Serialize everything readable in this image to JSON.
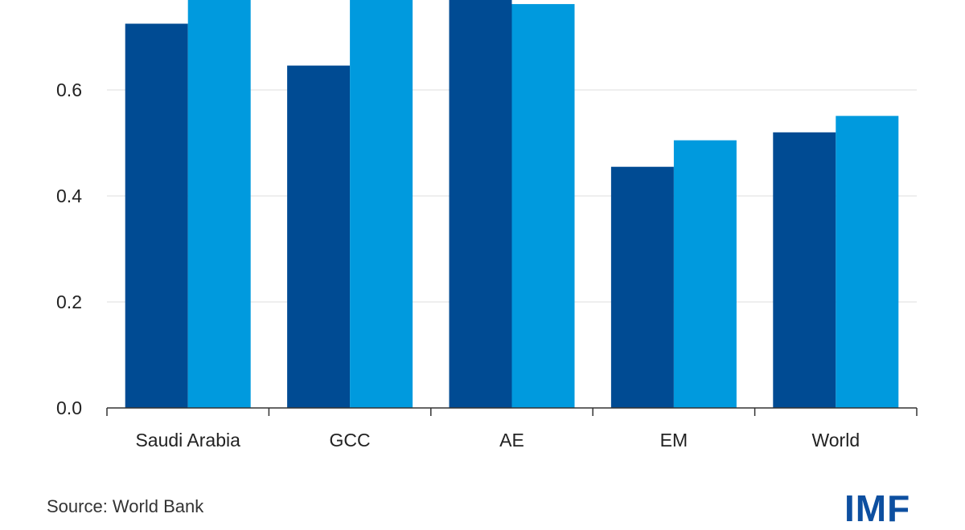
{
  "chart_data": {
    "type": "bar",
    "categories": [
      "Saudi Arabia",
      "GCC",
      "AE",
      "EM",
      "World"
    ],
    "series": [
      {
        "color": "#004b93",
        "values": [
          0.725,
          0.646,
          0.78,
          0.455,
          0.52
        ]
      },
      {
        "color": "#009ade",
        "values": [
          0.8,
          0.8,
          0.762,
          0.505,
          0.551
        ]
      }
    ],
    "yticks": [
      "0.0",
      "0.2",
      "0.4",
      "0.6"
    ],
    "ylim": [
      0,
      0.76
    ],
    "grid": true
  },
  "footer": {
    "source": "Source: World Bank",
    "logo": "IMF"
  }
}
